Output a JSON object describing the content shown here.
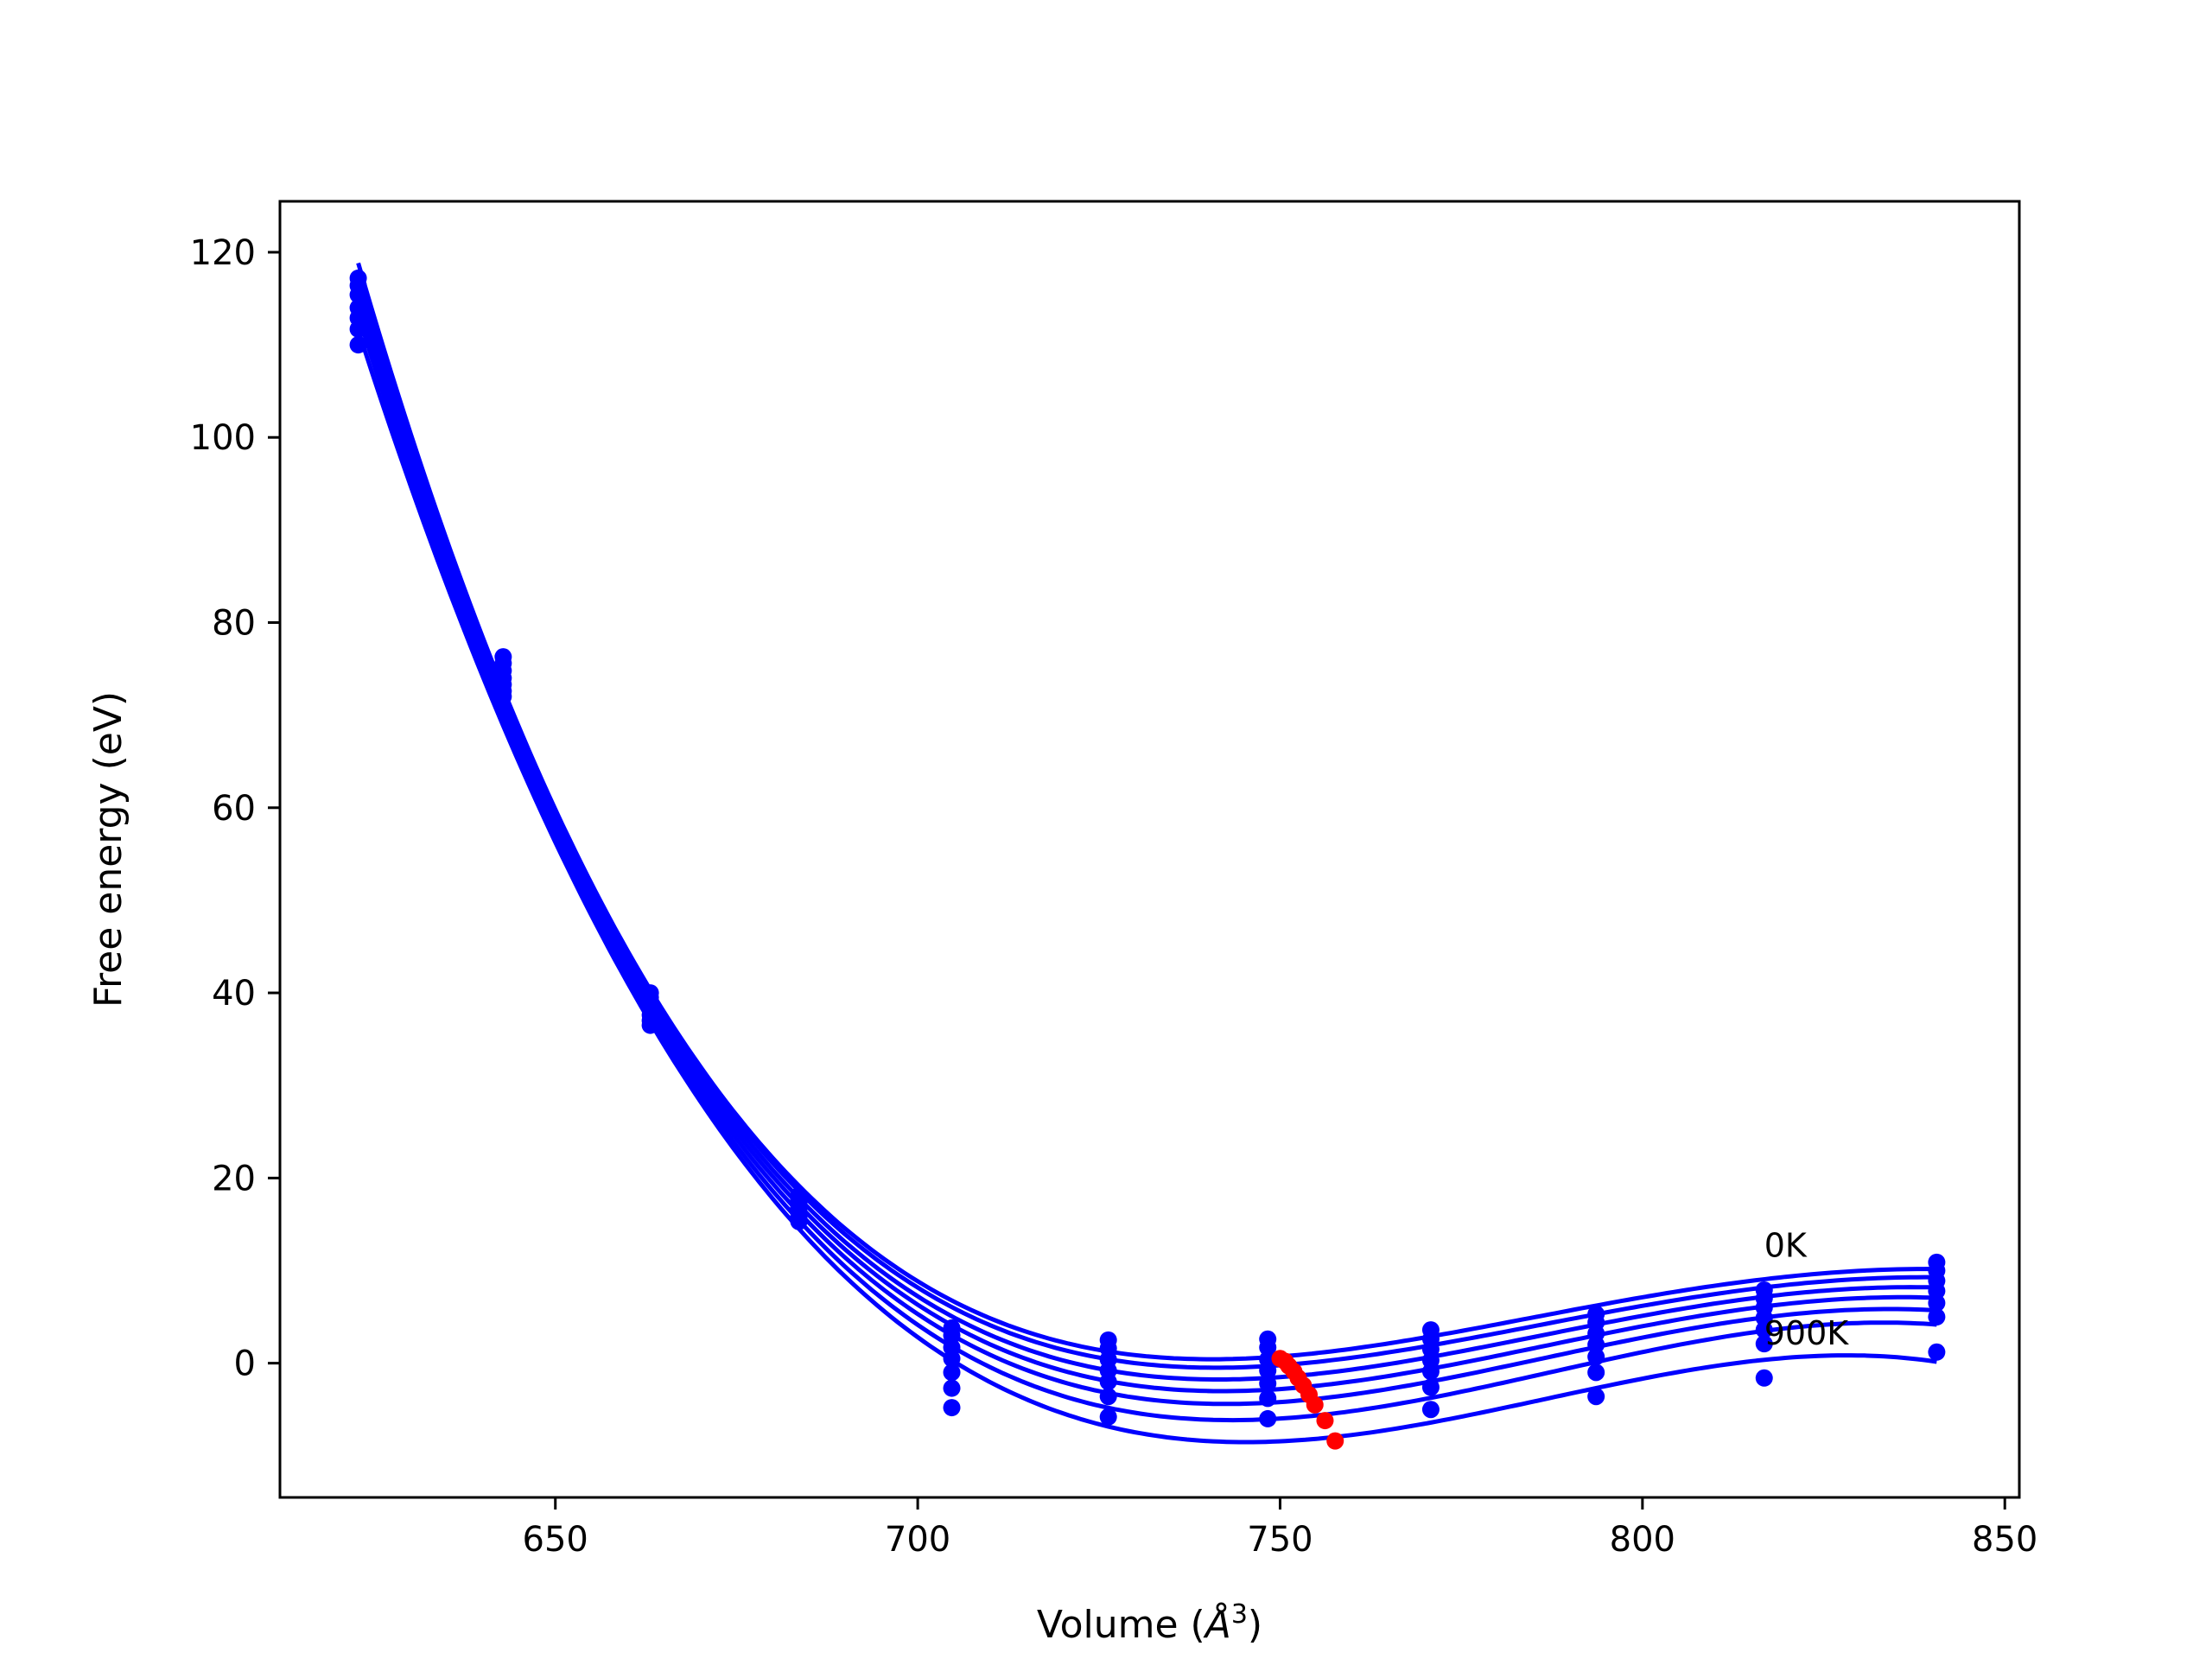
{
  "chart_data": {
    "type": "line",
    "title": "",
    "xlabel_prefix": "Volume (",
    "xlabel_unit": "Å",
    "xlabel_exp": "3",
    "xlabel_suffix": ")",
    "ylabel": "Free energy (eV)",
    "xlim": [
      612,
      852
    ],
    "ylim": [
      -14.5,
      125.5
    ],
    "xticks": [
      650,
      700,
      750,
      800,
      850
    ],
    "yticks": [
      0,
      20,
      40,
      60,
      80,
      100,
      120
    ],
    "grid": false,
    "legend": "none",
    "colors": {
      "fit": "#0000ff",
      "points": "#0000ff",
      "minima": "#ff0000",
      "axes": "#000000"
    },
    "volumes": [
      622.8,
      642.8,
      663.1,
      683.6,
      704.7,
      726.3,
      748.3,
      770.8,
      793.6,
      816.8,
      840.6
    ],
    "series": [
      {
        "name": "0K",
        "values": [
          117.2,
          76.3,
          40.0,
          18.1,
          3.8,
          2.5,
          2.6,
          3.6,
          5.3,
          7.9,
          10.9
        ]
      },
      {
        "name": "",
        "values": [
          116.4,
          75.6,
          39.5,
          17.7,
          3.0,
          1.6,
          1.7,
          2.6,
          4.4,
          7.0,
          10.0
        ]
      },
      {
        "name": "",
        "values": [
          115.4,
          74.8,
          38.9,
          17.3,
          1.7,
          0.4,
          0.4,
          1.5,
          3.2,
          6.0,
          8.9
        ]
      },
      {
        "name": "",
        "values": [
          114.0,
          74.0,
          38.2,
          16.8,
          0.5,
          -0.8,
          -0.8,
          0.3,
          2.0,
          4.9,
          7.8
        ]
      },
      {
        "name": "",
        "values": [
          112.9,
          73.3,
          37.6,
          16.3,
          -1.0,
          -2.0,
          -2.2,
          -0.9,
          0.7,
          3.6,
          6.5
        ]
      },
      {
        "name": "",
        "values": [
          111.7,
          72.6,
          37.0,
          15.8,
          -2.7,
          -3.6,
          -3.8,
          -2.6,
          -1.0,
          2.1,
          5.0
        ]
      },
      {
        "name": "",
        "values": [
          110.0,
          72.0,
          36.5,
          15.3,
          -4.8,
          -5.8,
          -6.0,
          -5.0,
          -3.6,
          -1.6,
          1.2
        ]
      }
    ],
    "minima": [
      {
        "x": 750.0,
        "y": 0.5
      },
      {
        "x": 750.7,
        "y": 0.2
      },
      {
        "x": 751.2,
        "y": -0.3
      },
      {
        "x": 751.9,
        "y": -0.9
      },
      {
        "x": 752.5,
        "y": -1.6
      },
      {
        "x": 753.2,
        "y": -2.4
      },
      {
        "x": 754.0,
        "y": -3.4
      },
      {
        "x": 754.8,
        "y": -4.5
      },
      {
        "x": 756.2,
        "y": -6.2
      },
      {
        "x": 757.6,
        "y": -8.4
      }
    ],
    "annotations": [
      {
        "text": "0K",
        "x": 816.8,
        "y": 11.5
      },
      {
        "text": "900K",
        "x": 816.8,
        "y": 2.0
      }
    ]
  }
}
